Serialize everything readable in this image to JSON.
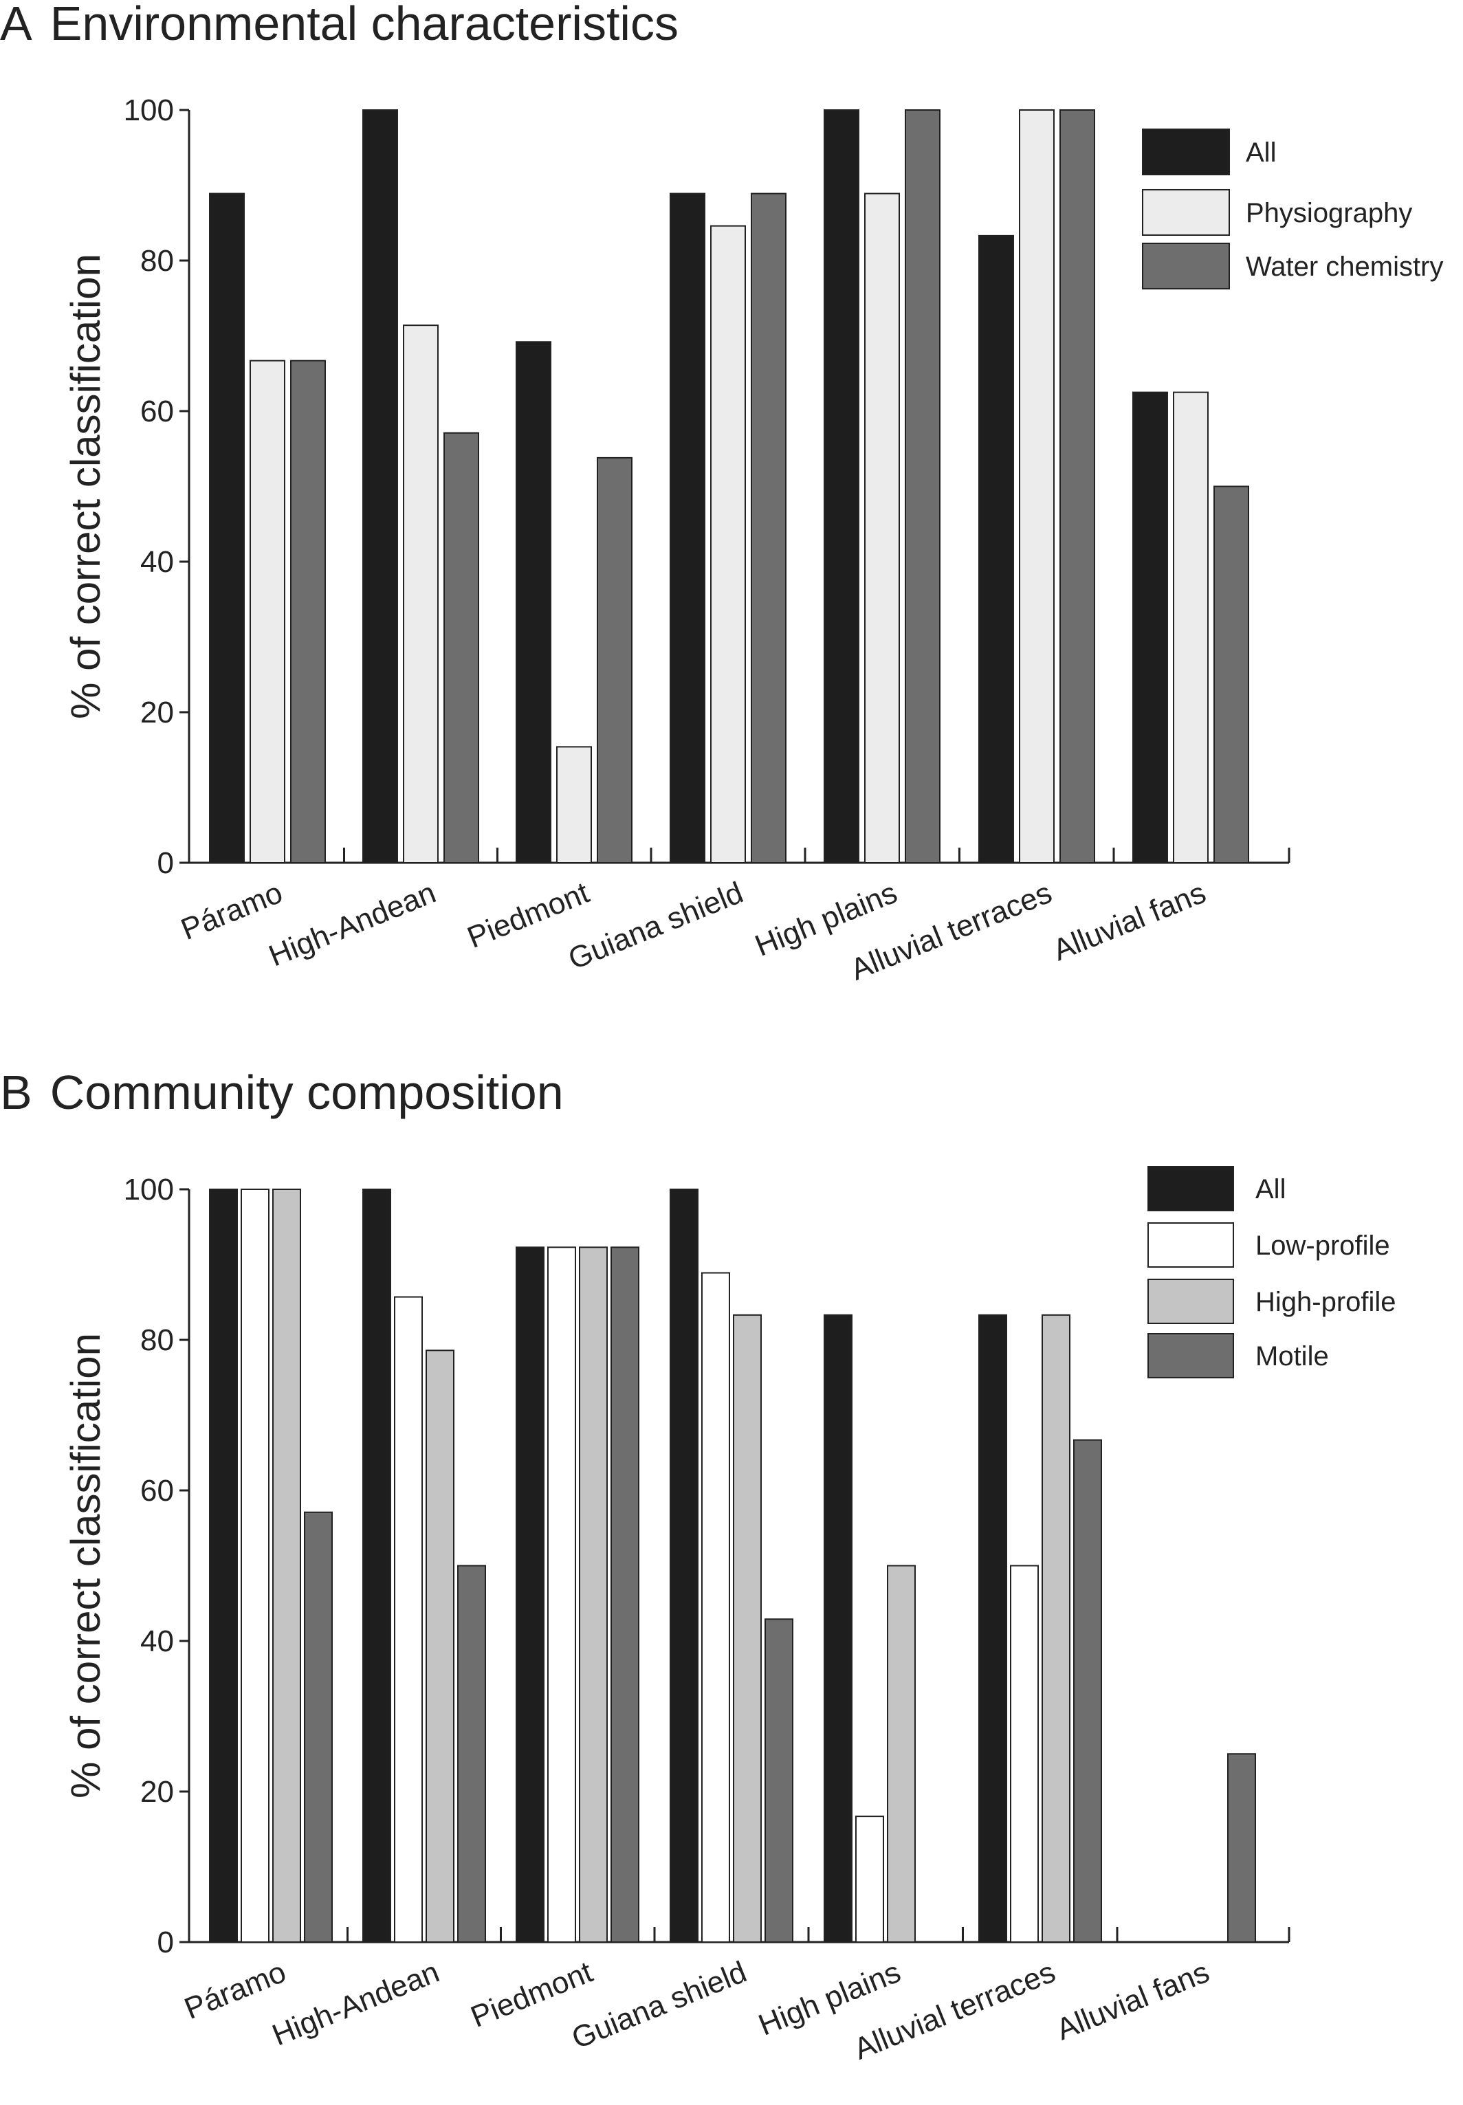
{
  "chart_data": [
    {
      "type": "bar",
      "panel": "A",
      "title": "Environmental characteristics",
      "ylabel": "% of correct classification",
      "xlabel": "",
      "ylim": [
        0,
        100
      ],
      "yticks": [
        "0",
        "20",
        "40",
        "60",
        "80",
        "100"
      ],
      "categories": [
        "Páramo",
        "High-Andean",
        "Piedmont",
        "Guiana shield",
        "High plains",
        "Alluvial terraces",
        "Alluvial fans"
      ],
      "legend_position": "top-right",
      "grid": false,
      "series": [
        {
          "name": "All",
          "color": "#1e1e1e",
          "values": [
            88.9,
            100,
            69.2,
            88.9,
            100,
            83.3,
            62.5
          ]
        },
        {
          "name": "Physiography",
          "color": "#ececec",
          "values": [
            66.7,
            71.4,
            15.4,
            84.6,
            88.9,
            100,
            62.5
          ]
        },
        {
          "name": "Water chemistry",
          "color": "#6e6e6e",
          "values": [
            66.7,
            57.1,
            53.8,
            88.9,
            100,
            100,
            50
          ]
        }
      ]
    },
    {
      "type": "bar",
      "panel": "B",
      "title": "Community composition",
      "ylabel": "% of correct classification",
      "xlabel": "",
      "ylim": [
        0,
        100
      ],
      "yticks": [
        "0",
        "20",
        "40",
        "60",
        "80",
        "100"
      ],
      "categories": [
        "Páramo",
        "High-Andean",
        "Piedmont",
        "Guiana shield",
        "High plains",
        "Alluvial terraces",
        "Alluvial fans"
      ],
      "legend_position": "top-right",
      "grid": false,
      "series": [
        {
          "name": "All",
          "color": "#1e1e1e",
          "values": [
            100,
            100,
            92.3,
            100,
            83.3,
            83.3,
            0
          ]
        },
        {
          "name": "Low-profile",
          "color": "#ffffff",
          "values": [
            100,
            85.7,
            92.3,
            88.9,
            16.7,
            50,
            0
          ]
        },
        {
          "name": "High-profile",
          "color": "#c4c4c4",
          "values": [
            100,
            78.6,
            92.3,
            83.3,
            50,
            83.3,
            0
          ]
        },
        {
          "name": "Motile",
          "color": "#6e6e6e",
          "values": [
            57.1,
            50,
            92.3,
            42.9,
            0,
            66.7,
            25
          ]
        }
      ]
    }
  ]
}
